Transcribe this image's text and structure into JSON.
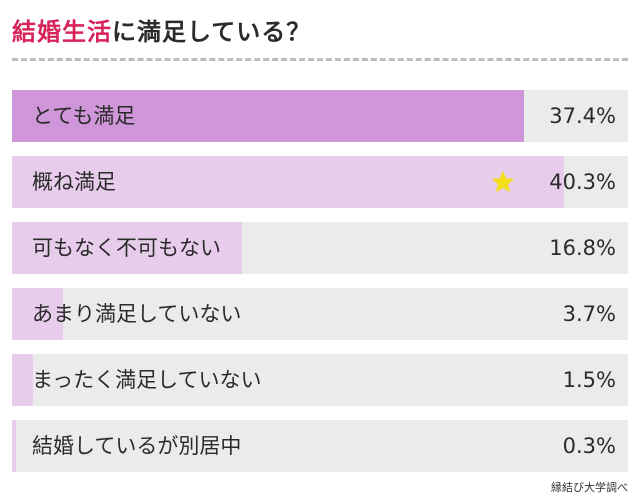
{
  "title": {
    "highlight": "結婚生活",
    "rest": "に満足している？"
  },
  "source": "縁結び大学調べ",
  "colors": {
    "top_fill": "#cf97d9",
    "fill": "#e7cdeb",
    "track": "#ebebeb",
    "accent": "#d6245a",
    "star": "#f3df19"
  },
  "icons": {
    "highlight_marker": "star-icon"
  },
  "chart_data": {
    "type": "bar",
    "orientation": "horizontal",
    "categories": [
      "とても満足",
      "概ね満足",
      "可もなく不可もない",
      "あまり満足していない",
      "まったく満足していない",
      "結婚しているが別居中"
    ],
    "values": [
      37.4,
      40.3,
      16.8,
      3.7,
      1.5,
      0.3
    ],
    "value_labels": [
      "37.4%",
      "40.3%",
      "16.8%",
      "3.7%",
      "1.5%",
      "0.3%"
    ],
    "unit": "%",
    "highlighted_index": 1,
    "xlim": [
      0,
      45
    ]
  }
}
